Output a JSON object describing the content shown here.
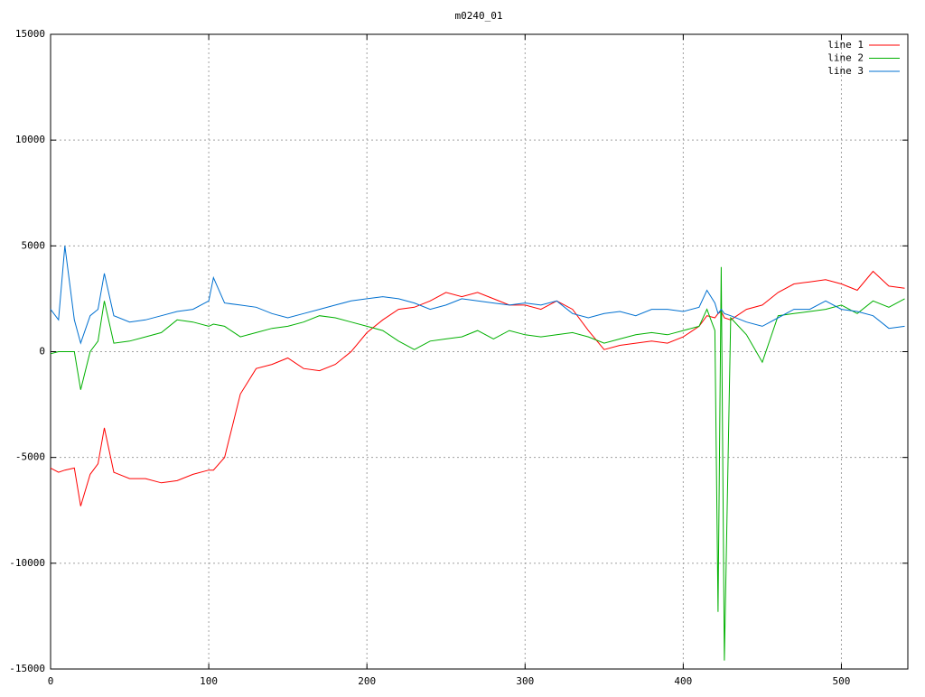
{
  "chart_data": {
    "type": "line",
    "title": "m0240_01",
    "x": [
      0,
      5,
      9,
      15,
      19,
      25,
      30,
      34,
      40,
      50,
      60,
      70,
      80,
      90,
      100,
      103,
      110,
      120,
      130,
      140,
      150,
      160,
      170,
      180,
      190,
      200,
      210,
      220,
      230,
      240,
      250,
      260,
      270,
      280,
      290,
      300,
      310,
      320,
      330,
      340,
      350,
      360,
      370,
      380,
      390,
      400,
      410,
      415,
      420,
      422,
      424,
      426,
      430,
      440,
      450,
      460,
      470,
      480,
      490,
      500,
      510,
      520,
      530,
      540
    ],
    "series": [
      {
        "name": "line 1",
        "color": "#ff0000",
        "values": [
          -5500,
          -5700,
          -5600,
          -5500,
          -7300,
          -5800,
          -5300,
          -3600,
          -5700,
          -6000,
          -6000,
          -6200,
          -6100,
          -5800,
          -5600,
          -5600,
          -5000,
          -2000,
          -800,
          -600,
          -300,
          -800,
          -900,
          -600,
          0,
          900,
          1500,
          2000,
          2100,
          2400,
          2800,
          2600,
          2800,
          2500,
          2200,
          2200,
          2000,
          2400,
          2000,
          1000,
          100,
          300,
          400,
          500,
          400,
          700,
          1200,
          1700,
          1600,
          1800,
          1900,
          1600,
          1500,
          2000,
          2200,
          2800,
          3200,
          3300,
          3400,
          3200,
          2900,
          3800,
          3100,
          3000
        ]
      },
      {
        "name": "line 2",
        "color": "#00b000",
        "values": [
          -100,
          0,
          0,
          0,
          -1800,
          0,
          500,
          2400,
          400,
          500,
          700,
          900,
          1500,
          1400,
          1200,
          1300,
          1200,
          700,
          900,
          1100,
          1200,
          1400,
          1700,
          1600,
          1400,
          1200,
          1000,
          500,
          100,
          500,
          600,
          700,
          1000,
          600,
          1000,
          800,
          700,
          800,
          900,
          700,
          400,
          600,
          800,
          900,
          800,
          1000,
          1200,
          2000,
          1000,
          -12300,
          4000,
          -14600,
          1600,
          800,
          -500,
          1700,
          1800,
          1900,
          2000,
          2200,
          1800,
          2400,
          2100,
          2500
        ]
      },
      {
        "name": "line 3",
        "color": "#0070d0",
        "values": [
          2000,
          1500,
          5000,
          1500,
          400,
          1700,
          2000,
          3700,
          1700,
          1400,
          1500,
          1700,
          1900,
          2000,
          2400,
          3500,
          2300,
          2200,
          2100,
          1800,
          1600,
          1800,
          2000,
          2200,
          2400,
          2500,
          2600,
          2500,
          2300,
          2000,
          2200,
          2500,
          2400,
          2300,
          2200,
          2300,
          2200,
          2400,
          1800,
          1600,
          1800,
          1900,
          1700,
          2000,
          2000,
          1900,
          2100,
          2900,
          2300,
          1800,
          2000,
          1800,
          1700,
          1400,
          1200,
          1600,
          2000,
          2000,
          2400,
          2000,
          1900,
          1700,
          1100,
          1200
        ]
      }
    ],
    "xlim": [
      0,
      542
    ],
    "ylim": [
      -15000,
      15000
    ],
    "xticks": [
      0,
      100,
      200,
      300,
      400,
      500
    ],
    "yticks": [
      -15000,
      -10000,
      -5000,
      0,
      5000,
      10000,
      15000
    ],
    "grid": true,
    "legend": "top-right"
  }
}
